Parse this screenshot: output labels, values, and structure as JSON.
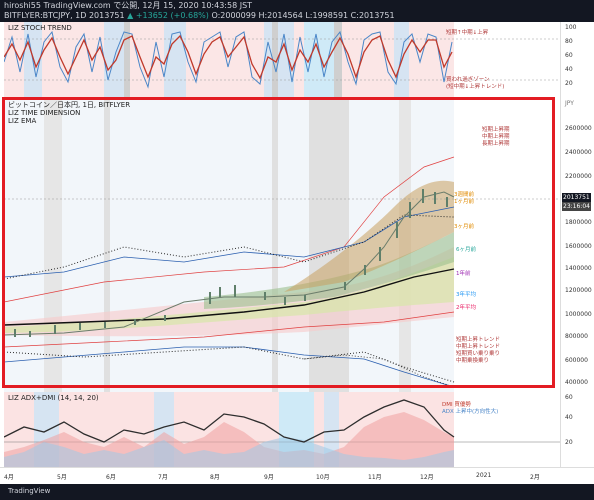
{
  "header": {
    "line1": "hiroshi55 TradingView.com で公開, 12月 15, 2020 10:43:58 JST",
    "symbol": "BITFLYER:BTCJPY, 1D",
    "price": "2013751",
    "change": "▲ +13652 (+0.68%)",
    "ohlc": "O:2000099 H:2014564 L:1998591 C:2013751"
  },
  "stoch_panel": {
    "title": "LIZ STOCH TREND",
    "axis_ticks": [
      "100",
      "80",
      "60",
      "40",
      "20"
    ],
    "labels": [
      "短期↑中期↓上昇",
      "買われ過ぎゾーン",
      "(短中期↓上昇トレンド)"
    ]
  },
  "price_panel": {
    "title_lines": [
      "ビットコイン／日本円, 1日, BITFLYER",
      "LIZ TIME DIMENSION",
      "LIZ EMA"
    ],
    "currency": "JPY",
    "axis_ticks": [
      "2600000",
      "2400000",
      "2200000",
      "2000000",
      "1800000",
      "1600000",
      "1400000",
      "1200000",
      "1000000",
      "800000",
      "600000",
      "400000"
    ],
    "last_price_label": "2013751",
    "countdown_label": "23:16:04",
    "right_labels": [
      {
        "text": "短期上昇期",
        "color": "#b03a3a"
      },
      {
        "text": "中期上昇期",
        "color": "#b03a3a"
      },
      {
        "text": "長期上昇期",
        "color": "#b03a3a"
      },
      {
        "text": "3週間前",
        "color": "#e08a00"
      },
      {
        "text": "1ヶ月前",
        "color": "#e08a00"
      },
      {
        "text": "3ヶ月前",
        "color": "#e08a00"
      },
      {
        "text": "6ヶ月前",
        "color": "#26a69a"
      },
      {
        "text": "1年前",
        "color": "#9c27b0"
      },
      {
        "text": "3年平均",
        "color": "#2196f3"
      },
      {
        "text": "2年平均",
        "color": "#e91e63"
      }
    ],
    "bottom_right_labels": [
      "短期上昇トレンド",
      "中期上昇トレンド",
      "短期買い乗り乗り",
      "中期乗換乗り"
    ]
  },
  "adx_panel": {
    "title": "LIZ ADX+DMI (14, 14, 20)",
    "axis_ticks": [
      "60",
      "40",
      "20"
    ],
    "legend": [
      "DMI 買優勢",
      "ADX 上昇中(方向性大)"
    ]
  },
  "x_axis": {
    "labels": [
      "4月",
      "5月",
      "6月",
      "7月",
      "8月",
      "9月",
      "10月",
      "11月",
      "12月",
      "2021",
      "2月"
    ]
  },
  "footer": {
    "brand": "TradingView"
  },
  "chart_data": {
    "type": "line",
    "title": "ビットコイン／日本円, 1日, BITFLYER",
    "ylabel": "JPY",
    "ylim": [
      400000,
      2700000
    ],
    "x": [
      "4月",
      "5月",
      "6月",
      "7月",
      "8月",
      "9月",
      "10月",
      "11月",
      "12月"
    ],
    "series": [
      {
        "values": [
          720000,
          900000,
          1000000,
          1000000,
          1250000,
          1150000,
          1130000,
          1450000,
          2000000
        ]
      }
    ]
  },
  "colors": {
    "background_dark": "#131722",
    "highlight_box": "#e31c23",
    "up": "#26a69a",
    "price_label_bg": "#131722",
    "stoch_line": "#c0392b",
    "adx_line": "#2e2e2e"
  }
}
